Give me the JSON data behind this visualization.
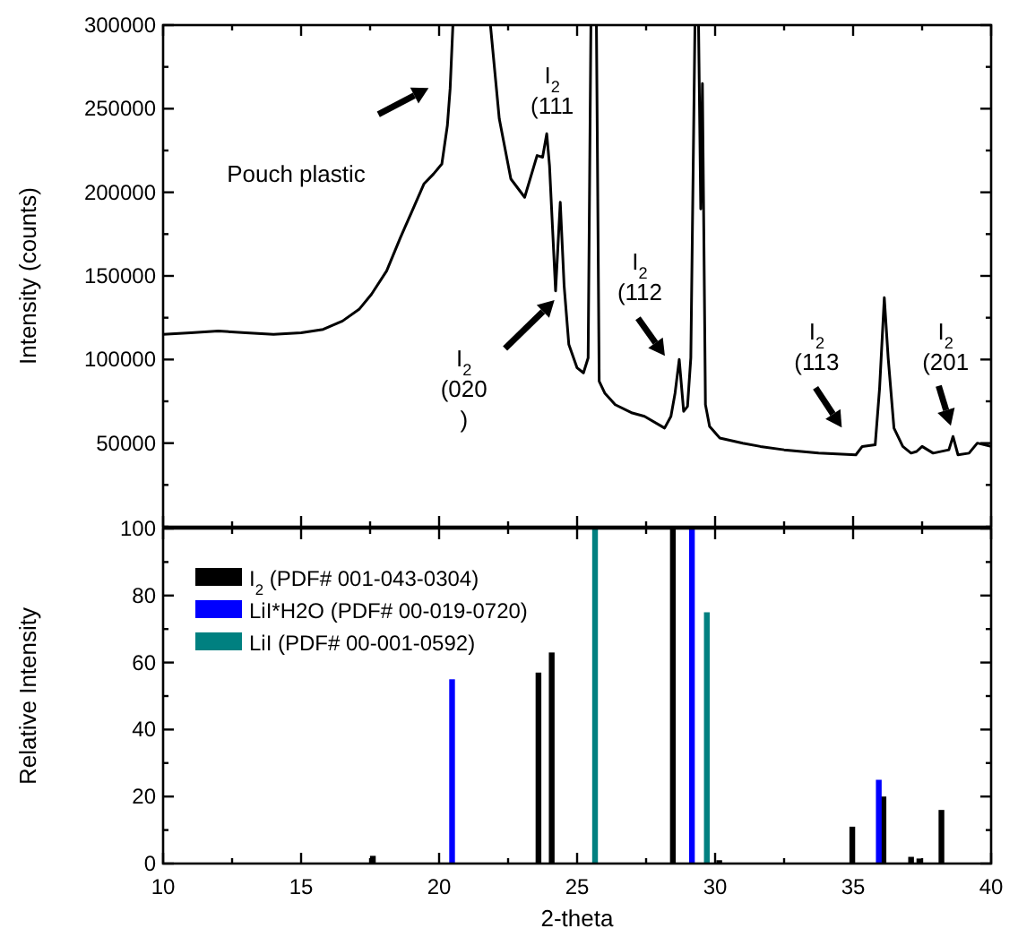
{
  "chart_data": [
    {
      "type": "line",
      "ylabel": "Intensity (counts)",
      "color": "#000000",
      "xlim": [
        10,
        40
      ],
      "ylim": [
        0,
        300000
      ],
      "xticks": [
        10,
        {
          "value": 12.5,
          "label": null
        },
        15,
        {
          "value": 17.5,
          "label": null
        },
        20,
        {
          "value": 22.5,
          "label": null
        },
        25,
        {
          "value": 27.5,
          "label": null
        },
        30,
        {
          "value": 32.5,
          "label": null
        },
        35,
        {
          "value": 37.5,
          "label": null
        },
        40
      ],
      "yticks": [
        {
          "value": 0,
          "label": null
        },
        {
          "value": 25000,
          "label": null
        },
        50000,
        {
          "value": 75000,
          "label": null
        },
        100000,
        {
          "value": 125000,
          "label": null
        },
        150000,
        {
          "value": 175000,
          "label": null
        },
        200000,
        {
          "value": 225000,
          "label": null
        },
        250000,
        {
          "value": 275000,
          "label": null
        },
        300000
      ],
      "tick_labels": "y",
      "x": [
        10,
        11,
        12,
        13,
        14,
        15,
        15.8,
        16.5,
        17.1,
        17.55,
        18.1,
        18.6,
        19.0,
        19.45,
        19.8,
        20.1,
        20.3,
        20.4,
        20.5,
        21.2,
        21.86,
        22.18,
        22.6,
        23.1,
        23.55,
        23.75,
        23.9,
        24.0,
        24.22,
        24.39,
        24.53,
        24.7,
        25.0,
        25.23,
        25.4,
        25.5,
        25.6,
        25.7,
        25.8,
        26.0,
        26.38,
        27.0,
        27.44,
        28.17,
        28.4,
        28.55,
        28.7,
        28.86,
        29.0,
        29.12,
        29.27,
        29.33,
        29.4,
        29.48,
        29.54,
        29.65,
        29.8,
        30.17,
        31.0,
        31.64,
        32.5,
        33.75,
        35.1,
        35.33,
        35.8,
        35.96,
        36.13,
        36.27,
        36.48,
        36.8,
        37.1,
        37.3,
        37.5,
        37.9,
        38.47,
        38.62,
        38.8,
        39.2,
        39.5,
        40
      ],
      "values": [
        115000,
        116000,
        117000,
        116000,
        115000,
        116000,
        118000,
        123000,
        130000,
        139000,
        153000,
        173000,
        188000,
        205000,
        211000,
        217000,
        240000,
        262000,
        300000,
        null,
        300000,
        244000,
        208000,
        197000,
        222000,
        221000,
        235000,
        216000,
        141000,
        194000,
        144000,
        109000,
        95000,
        92000,
        101000,
        300000,
        null,
        300000,
        87000,
        80000,
        73000,
        68000,
        66000,
        59000,
        66000,
        80000,
        100000,
        69000,
        72000,
        101000,
        300000,
        null,
        300000,
        190000,
        265000,
        73000,
        60000,
        53000,
        50000,
        48000,
        46000,
        44000,
        43000,
        48000,
        49000,
        83000,
        137000,
        101000,
        59000,
        48000,
        44000,
        45000,
        48000,
        44000,
        46000,
        54000,
        43000,
        44000,
        50000,
        48000
      ],
      "annotations": [
        "Pouch plastic",
        {
          "text": "I$_{2}$\n(111",
          "x": 23.9,
          "y": 235000
        },
        "I$_{2}$\n(020\n)",
        {
          "text": "I$_{2}$\n(112",
          "x": 28.7,
          "y": 100000
        },
        "I$_{2}$\n(113",
        "I$_{2}$\n(201"
      ]
    },
    {
      "type": "bar",
      "xlabel": "2-theta",
      "ylabel": "Relative Intensity",
      "xlim": [
        10,
        40
      ],
      "ylim": [
        0,
        100
      ],
      "xticks": [
        10,
        {
          "value": 12.5,
          "label": null
        },
        15,
        {
          "value": 17.5,
          "label": null
        },
        20,
        {
          "value": 22.5,
          "label": null
        },
        25,
        {
          "value": 27.5,
          "label": null
        },
        30,
        {
          "value": 32.5,
          "label": null
        },
        35,
        {
          "value": 37.5,
          "label": null
        },
        40
      ],
      "yticks": [
        0,
        {
          "value": 10,
          "label": null
        },
        20,
        {
          "value": 30,
          "label": null
        },
        40,
        {
          "value": 50,
          "label": null
        },
        60,
        {
          "value": 70,
          "label": null
        },
        80,
        {
          "value": 90,
          "label": null
        },
        100
      ],
      "legend": "top left",
      "series": [
        {
          "name": "I$_{2}$ (PDF# 001-043-0304)",
          "color": "#000000",
          "x": [
            17.6,
            23.6,
            24.08,
            28.47,
            30.15,
            34.97,
            36.1,
            37.1,
            37.4,
            38.2
          ],
          "values": [
            2.3,
            57,
            63,
            100,
            1,
            11,
            20,
            2,
            1.5,
            16
          ]
        },
        {
          "name": "LiI*H2O (PDF# 00-019-0720)",
          "color": "#0000ff",
          "x": [
            20.47,
            29.16,
            35.93
          ],
          "values": [
            55,
            100,
            25
          ]
        },
        {
          "name": "LiI (PDF# 00-001-0592)",
          "color": "#008080",
          "x": [
            25.65,
            29.7
          ],
          "values": [
            100,
            75
          ]
        }
      ]
    }
  ]
}
